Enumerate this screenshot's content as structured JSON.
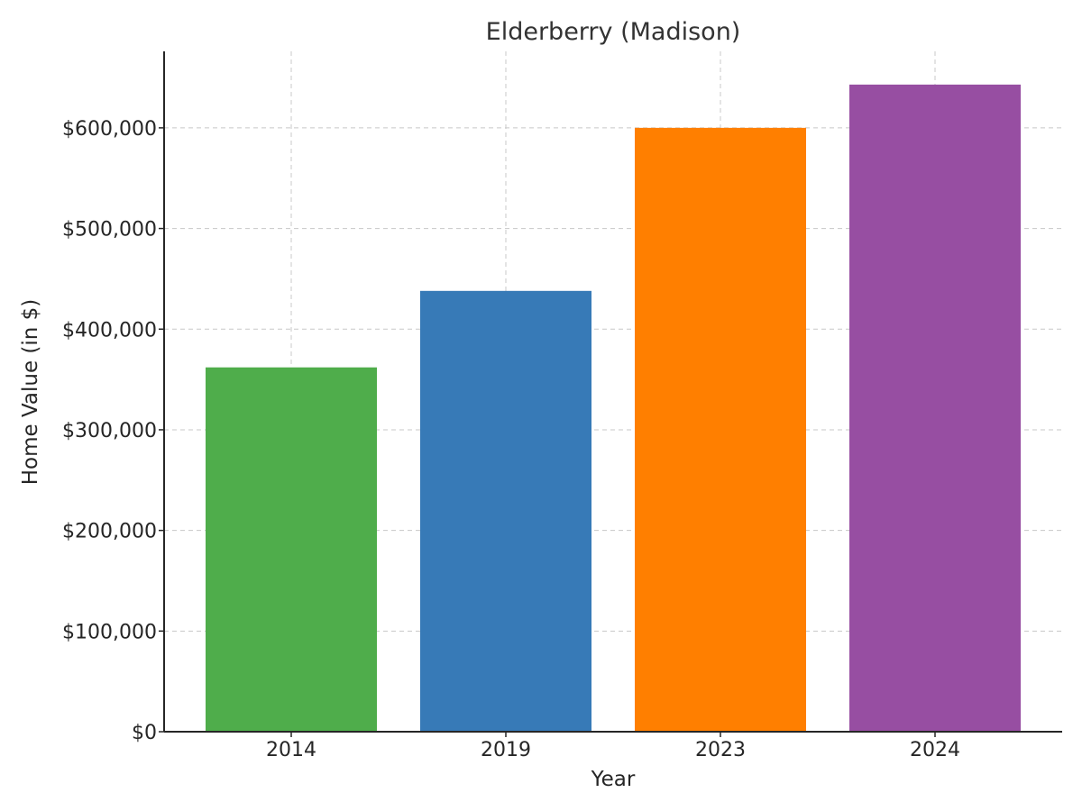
{
  "chart_data": {
    "type": "bar",
    "title": "Elderberry (Madison)",
    "xlabel": "Year",
    "ylabel": "Home Value (in $)",
    "categories": [
      "2014",
      "2019",
      "2023",
      "2024"
    ],
    "values": [
      362000,
      438000,
      600000,
      643000
    ],
    "colors": [
      "#4fad4b",
      "#377ab7",
      "#ff7f00",
      "#974ea2"
    ],
    "ylim": [
      0,
      676000
    ],
    "yticks": [
      0,
      100000,
      200000,
      300000,
      400000,
      500000,
      600000
    ],
    "ytick_labels": [
      "$0",
      "$100,000",
      "$200,000",
      "$300,000",
      "$400,000",
      "$500,000",
      "$600,000"
    ],
    "grid": true,
    "legend": "none"
  }
}
